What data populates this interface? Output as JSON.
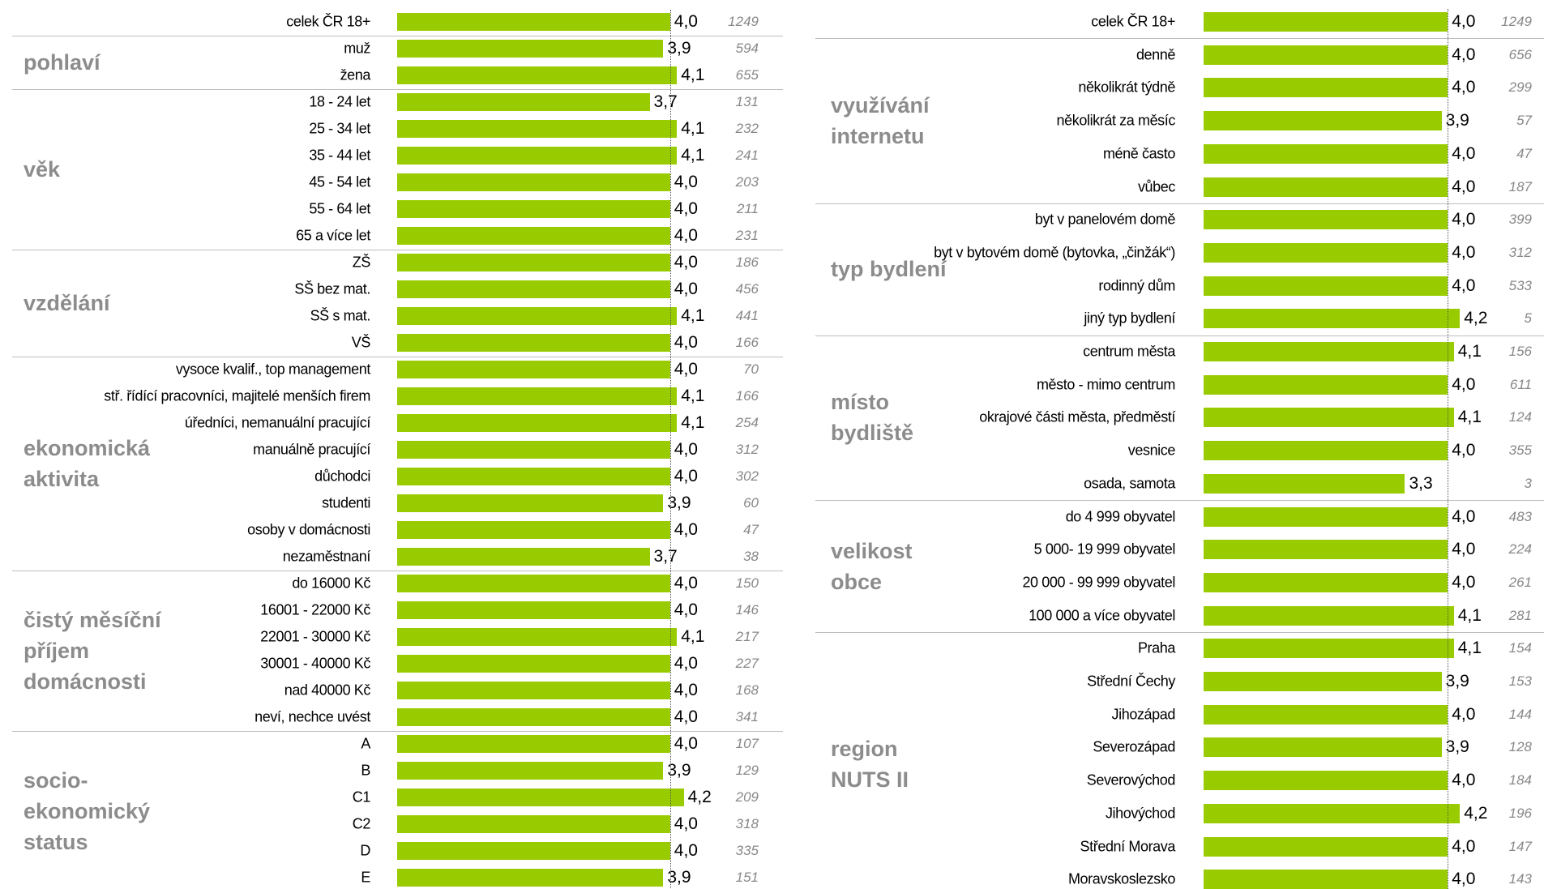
{
  "chart_data": [
    {
      "type": "bar",
      "color": "#99cc00",
      "total": {
        "category": "celek ČR 18+",
        "value": 4.0,
        "value_label": "4,0",
        "count": 1249
      },
      "groups": [
        {
          "name": "pohlaví",
          "categories": [
            "muž",
            "žena"
          ],
          "values": [
            3.9,
            4.1
          ],
          "value_labels": [
            "3,9",
            "4,1"
          ],
          "counts": [
            594,
            655
          ]
        },
        {
          "name": "věk",
          "categories": [
            "18 - 24 let",
            "25 - 34 let",
            "35 - 44 let",
            "45 - 54  let",
            "55 - 64 let",
            "65 a více let"
          ],
          "values": [
            3.7,
            4.1,
            4.1,
            4.0,
            4.0,
            4.0
          ],
          "value_labels": [
            "3,7",
            "4,1",
            "4,1",
            "4,0",
            "4,0",
            "4,0"
          ],
          "counts": [
            131,
            232,
            241,
            203,
            211,
            231
          ]
        },
        {
          "name": "vzdělání",
          "categories": [
            "ZŠ",
            "SŠ bez mat.",
            "SŠ s mat.",
            "VŠ"
          ],
          "values": [
            4.0,
            4.0,
            4.1,
            4.0
          ],
          "value_labels": [
            "4,0",
            "4,0",
            "4,1",
            "4,0"
          ],
          "counts": [
            186,
            456,
            441,
            166
          ]
        },
        {
          "name": "ekonomická aktivita",
          "categories": [
            "vysoce kvalif., top management",
            "stř. řídící pracovníci, majitelé menších firem",
            "úředníci, nemanuální pracující",
            "manuálně pracující",
            "důchodci",
            "studenti",
            "osoby v domácnosti",
            "nezaměstnaní"
          ],
          "values": [
            4.0,
            4.1,
            4.1,
            4.0,
            4.0,
            3.9,
            4.0,
            3.7
          ],
          "value_labels": [
            "4,0",
            "4,1",
            "4,1",
            "4,0",
            "4,0",
            "3,9",
            "4,0",
            "3,7"
          ],
          "counts": [
            70,
            166,
            254,
            312,
            302,
            60,
            47,
            38
          ]
        },
        {
          "name": "čistý měsíční příjem domácnosti",
          "categories": [
            "do 16000 Kč",
            "16001 - 22000 Kč",
            "22001 - 30000 Kč",
            "30001 - 40000 Kč",
            "nad 40000 Kč",
            "neví, nechce uvést"
          ],
          "values": [
            4.0,
            4.0,
            4.1,
            4.0,
            4.0,
            4.0
          ],
          "value_labels": [
            "4,0",
            "4,0",
            "4,1",
            "4,0",
            "4,0",
            "4,0"
          ],
          "counts": [
            150,
            146,
            217,
            227,
            168,
            341
          ]
        },
        {
          "name": "socio-ekonomický status",
          "categories": [
            "A",
            "B",
            "C1",
            "C2",
            "D",
            "E"
          ],
          "values": [
            4.0,
            3.9,
            4.2,
            4.0,
            4.0,
            3.9
          ],
          "value_labels": [
            "4,0",
            "3,9",
            "4,2",
            "4,0",
            "4,0",
            "3,9"
          ],
          "counts": [
            107,
            129,
            209,
            318,
            335,
            151
          ]
        }
      ]
    },
    {
      "type": "bar",
      "color": "#99cc00",
      "total": {
        "category": "celek ČR 18+",
        "value": 4.0,
        "value_label": "4,0",
        "count": 1249
      },
      "groups": [
        {
          "name": "využívání internetu",
          "categories": [
            "denně",
            "několikrát týdně",
            "několikrát za měsíc",
            "méně často",
            "vůbec"
          ],
          "values": [
            4.0,
            4.0,
            3.9,
            4.0,
            4.0
          ],
          "value_labels": [
            "4,0",
            "4,0",
            "3,9",
            "4,0",
            "4,0"
          ],
          "counts": [
            656,
            299,
            57,
            47,
            187
          ]
        },
        {
          "name": "typ bydlení",
          "categories": [
            "byt v panelovém domě",
            "byt v  bytovém domě (bytovka, „činžák“)",
            "rodinný dům",
            "jiný typ bydlení"
          ],
          "values": [
            4.0,
            4.0,
            4.0,
            4.2
          ],
          "value_labels": [
            "4,0",
            "4,0",
            "4,0",
            "4,2"
          ],
          "counts": [
            399,
            312,
            533,
            5
          ]
        },
        {
          "name": "místo bydliště",
          "categories": [
            "centrum města",
            "město - mimo centrum",
            "okrajové části města, předměstí",
            "vesnice",
            "osada, samota"
          ],
          "values": [
            4.1,
            4.0,
            4.1,
            4.0,
            3.3
          ],
          "value_labels": [
            "4,1",
            "4,0",
            "4,1",
            "4,0",
            "3,3"
          ],
          "counts": [
            156,
            611,
            124,
            355,
            3
          ]
        },
        {
          "name": "velikost obce",
          "categories": [
            "do 4 999 obyvatel",
            "5 000- 19 999 obyvatel",
            "20 000 - 99 999 obyvatel",
            "100 000 a více obyvatel"
          ],
          "values": [
            4.0,
            4.0,
            4.0,
            4.1
          ],
          "value_labels": [
            "4,0",
            "4,0",
            "4,0",
            "4,1"
          ],
          "counts": [
            483,
            224,
            261,
            281
          ]
        },
        {
          "name": "region NUTS II",
          "categories": [
            "Praha",
            "Střední Čechy",
            "Jihozápad",
            "Severozápad",
            "Severovýchod",
            "Jihovýchod",
            "Střední Morava",
            "Moravskoslezsko"
          ],
          "values": [
            4.1,
            3.9,
            4.0,
            3.9,
            4.0,
            4.2,
            4.0,
            4.0
          ],
          "value_labels": [
            "4,1",
            "3,9",
            "4,0",
            "3,9",
            "4,0",
            "4,2",
            "4,0",
            "4,0"
          ],
          "counts": [
            154,
            153,
            144,
            128,
            184,
            196,
            147,
            143
          ]
        }
      ]
    }
  ]
}
